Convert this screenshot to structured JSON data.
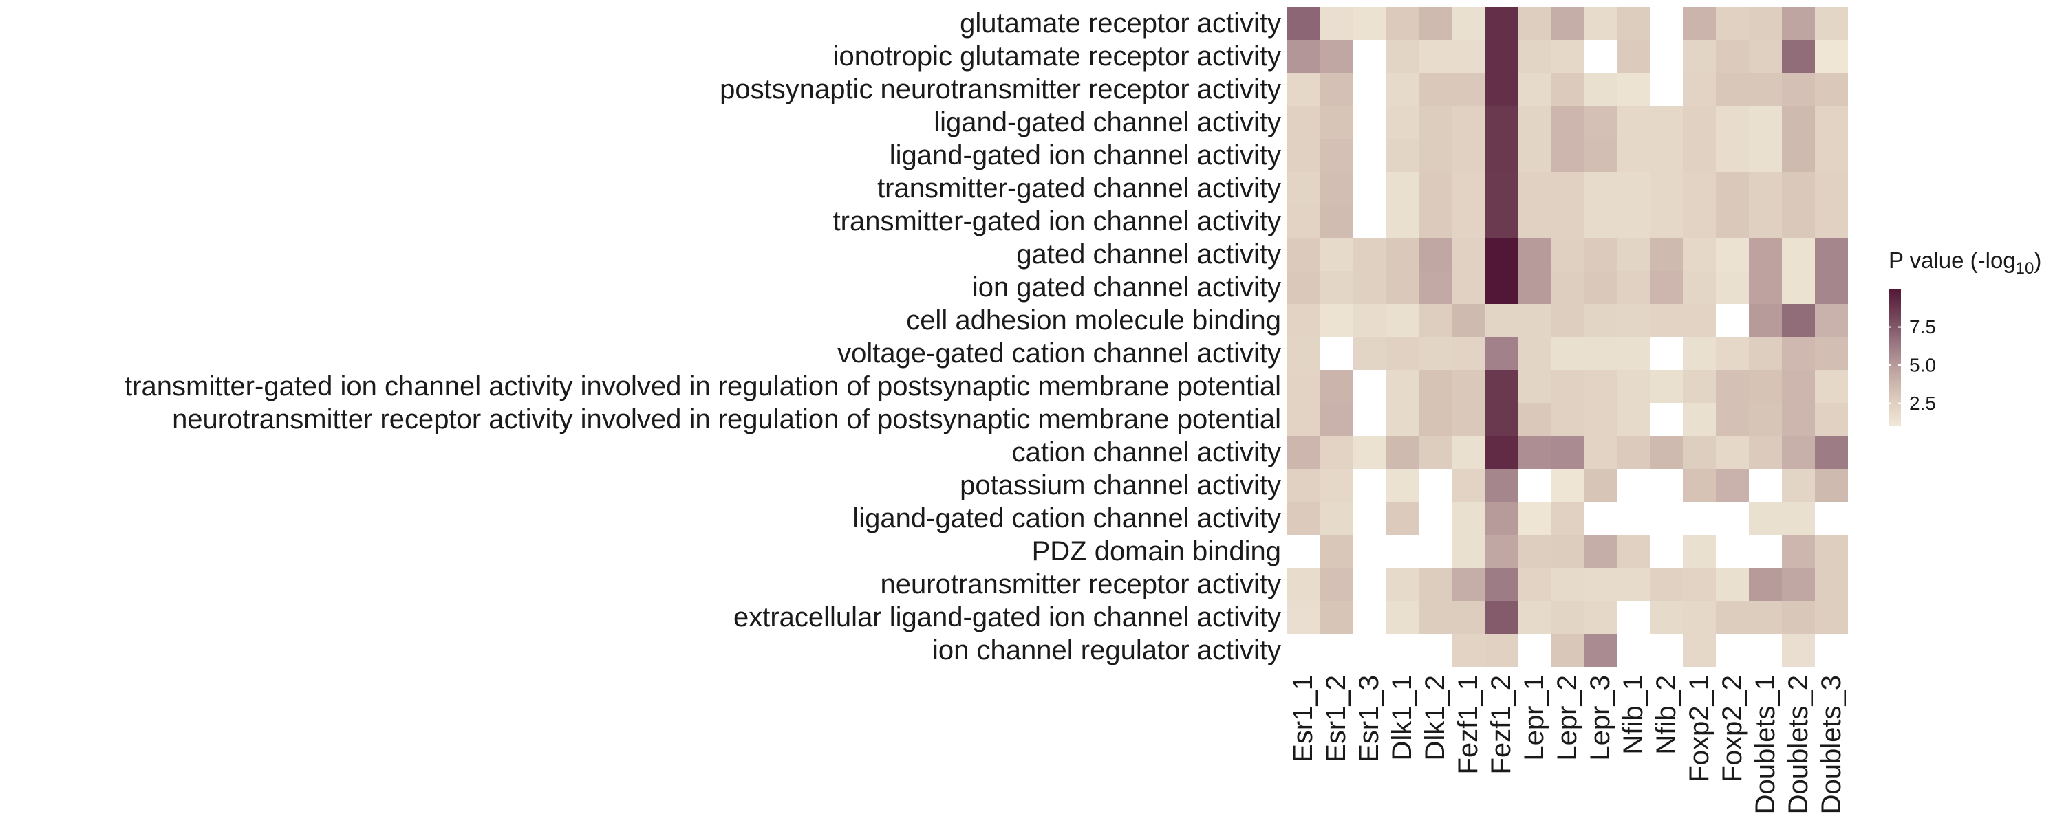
{
  "chart_data": {
    "type": "heatmap",
    "title": "",
    "xlabel": "",
    "ylabel": "",
    "columns": [
      "Esr1_1",
      "Esr1_2",
      "Esr1_3",
      "Dlk1_1",
      "Dlk1_2",
      "Fezf1_1",
      "Fezf1_2",
      "Lepr_1",
      "Lepr_2",
      "Lepr_3",
      "Nfib_1",
      "Nfib_2",
      "Foxp2_1",
      "Foxp2_2",
      "Doublets_1",
      "Doublets_2",
      "Doublets_3"
    ],
    "rows": [
      "glutamate receptor activity",
      "ionotropic glutamate receptor activity",
      "postsynaptic neurotransmitter receptor activity",
      "ligand-gated channel activity",
      "ligand-gated ion channel activity",
      "transmitter-gated channel activity",
      "transmitter-gated ion channel activity",
      "gated channel activity",
      "ion gated channel activity",
      "cell adhesion molecule binding",
      "voltage-gated cation channel activity",
      "transmitter-gated ion channel activity involved in regulation of postsynaptic membrane potential",
      "neurotransmitter receptor activity involved in regulation of postsynaptic membrane potential",
      "cation channel activity",
      "potassium channel activity",
      "ligand-gated cation channel activity",
      "PDZ domain binding",
      "neurotransmitter receptor activity",
      "extracellular ligand-gated ion channel activity",
      "ion channel regulator activity"
    ],
    "values": [
      [
        7.0,
        1.6,
        1.4,
        2.8,
        3.6,
        1.5,
        9.0,
        2.6,
        4.2,
        1.8,
        2.7,
        null,
        3.9,
        2.4,
        2.6,
        4.6,
        2.1
      ],
      [
        5.2,
        4.5,
        null,
        2.2,
        1.7,
        1.7,
        9.0,
        2.2,
        2.0,
        null,
        2.8,
        null,
        2.2,
        2.8,
        2.5,
        6.8,
        1.1
      ],
      [
        2.0,
        3.3,
        null,
        1.9,
        2.9,
        2.9,
        9.0,
        1.9,
        2.8,
        1.5,
        1.3,
        null,
        2.3,
        3.0,
        3.0,
        3.3,
        2.9
      ],
      [
        2.4,
        3.1,
        null,
        2.0,
        2.7,
        2.4,
        8.7,
        2.2,
        3.8,
        3.3,
        2.0,
        2.0,
        2.4,
        1.7,
        1.5,
        3.6,
        2.3
      ],
      [
        2.4,
        3.3,
        null,
        2.2,
        2.7,
        2.4,
        8.7,
        2.2,
        3.8,
        3.4,
        2.0,
        2.0,
        2.4,
        1.7,
        1.5,
        3.6,
        2.3
      ],
      [
        2.2,
        3.4,
        null,
        1.5,
        2.8,
        2.3,
        8.6,
        2.4,
        2.4,
        1.8,
        1.8,
        2.0,
        2.3,
        2.9,
        2.5,
        2.9,
        2.4
      ],
      [
        2.3,
        3.5,
        null,
        1.5,
        2.8,
        2.3,
        8.6,
        2.4,
        2.4,
        1.8,
        1.8,
        2.0,
        2.3,
        2.9,
        2.5,
        2.9,
        2.4
      ],
      [
        2.8,
        1.9,
        2.5,
        2.9,
        4.5,
        2.4,
        10.0,
        5.0,
        2.5,
        2.8,
        2.2,
        3.6,
        2.0,
        1.4,
        4.7,
        1.4,
        5.8
      ],
      [
        2.9,
        2.1,
        2.5,
        2.9,
        4.4,
        2.4,
        10.0,
        5.0,
        2.6,
        2.9,
        2.4,
        3.8,
        2.1,
        1.5,
        4.7,
        1.4,
        5.8
      ],
      [
        2.3,
        1.3,
        1.7,
        1.5,
        2.6,
        3.6,
        2.2,
        2.2,
        2.6,
        2.2,
        2.1,
        2.3,
        2.3,
        null,
        5.0,
        6.8,
        4.0
      ],
      [
        2.2,
        null,
        2.2,
        2.4,
        2.2,
        2.3,
        6.0,
        2.2,
        1.5,
        1.5,
        1.5,
        null,
        1.5,
        2.0,
        2.6,
        3.7,
        3.4
      ],
      [
        2.3,
        3.9,
        null,
        1.9,
        3.2,
        2.9,
        8.7,
        2.2,
        2.4,
        2.3,
        1.9,
        1.5,
        2.2,
        3.3,
        3.2,
        3.8,
        2.0
      ],
      [
        2.3,
        4.0,
        null,
        1.9,
        3.2,
        2.9,
        8.7,
        2.9,
        2.4,
        2.3,
        1.9,
        null,
        1.5,
        3.3,
        3.1,
        3.8,
        2.4
      ],
      [
        3.8,
        2.3,
        1.4,
        3.6,
        2.7,
        1.5,
        9.2,
        5.5,
        5.6,
        2.3,
        2.8,
        3.6,
        2.6,
        2.0,
        2.8,
        4.1,
        6.2
      ],
      [
        2.4,
        2.0,
        null,
        1.4,
        null,
        2.3,
        5.8,
        null,
        1.2,
        3.1,
        null,
        null,
        3.2,
        4.0,
        null,
        2.2,
        3.6
      ],
      [
        2.8,
        1.9,
        null,
        2.8,
        null,
        1.5,
        5.0,
        1.2,
        2.4,
        null,
        null,
        null,
        null,
        null,
        1.5,
        1.5,
        null
      ],
      [
        null,
        3.0,
        null,
        null,
        null,
        1.5,
        4.5,
        2.6,
        2.7,
        4.2,
        2.4,
        null,
        1.5,
        null,
        null,
        3.8,
        2.6
      ],
      [
        1.7,
        3.3,
        null,
        1.9,
        2.7,
        4.2,
        6.2,
        2.3,
        1.9,
        1.8,
        1.8,
        2.4,
        2.3,
        1.5,
        5.0,
        4.5,
        2.6
      ],
      [
        1.6,
        3.1,
        null,
        1.5,
        2.7,
        2.7,
        7.4,
        1.9,
        2.2,
        2.0,
        null,
        1.9,
        2.0,
        2.7,
        2.7,
        3.0,
        2.6
      ],
      [
        null,
        null,
        null,
        null,
        null,
        2.3,
        2.4,
        null,
        3.0,
        5.6,
        null,
        null,
        2.0,
        null,
        null,
        1.6,
        null
      ]
    ],
    "value_range": [
      1,
      10
    ],
    "colorscale": [
      "#f0e8d8",
      "#dccbbc",
      "#bfa5a2",
      "#9a7783",
      "#734458",
      "#521736"
    ],
    "missing_color": "#ffffff",
    "legend": {
      "title_main": "P value (-log",
      "title_sub": "10",
      "title_close": ")",
      "ticks": [
        2.5,
        5.0,
        7.5
      ],
      "tick_labels": [
        "2.5",
        "5.0",
        "7.5"
      ],
      "placement": "right"
    }
  }
}
